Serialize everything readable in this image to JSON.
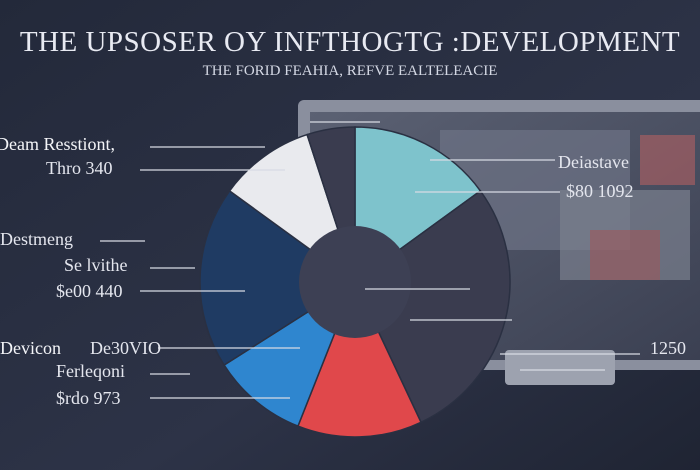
{
  "header": {
    "title": "THE UPSOSER OY INFTHOGTG :DEVELOPMENT",
    "subtitle": "THE FORID FEAHIA, REFVE EALTELEACIE"
  },
  "labels_left": [
    {
      "text": "Deam Resstiont,"
    },
    {
      "text": "Thro 340"
    },
    {
      "text": "Destmeng"
    },
    {
      "text": "Se lvithe"
    },
    {
      "text": "$e00 440"
    },
    {
      "text": "Devicon"
    },
    {
      "text": "De30VIO"
    },
    {
      "text": "Ferleqoni"
    },
    {
      "text": "$rdo 973"
    }
  ],
  "labels_right": [
    {
      "text": "Deiastave"
    },
    {
      "text": "$80 1092"
    },
    {
      "text": "1250"
    }
  ],
  "colors": {
    "background": "#2a3042",
    "cyan": "#7ec3cc",
    "white": "#e9eaee",
    "red": "#e0484b",
    "blue": "#2f86cf",
    "navy": "#1f3b63",
    "dark": "#3a3c4f",
    "monitor": "#8a8f9e"
  },
  "chart_data": {
    "type": "pie",
    "title": "THE UPSOSER OY INFTHOGTG :DEVELOPMENT",
    "subtitle": "THE FORID FEAHIA, REFVE EALTELEACIE",
    "slices": [
      {
        "color": "#7ec3cc",
        "value": 15
      },
      {
        "color": "#3a3c4f",
        "value": 28
      },
      {
        "color": "#e0484b",
        "value": 13
      },
      {
        "color": "#2f86cf",
        "value": 10
      },
      {
        "color": "#1f3b63",
        "value": 19
      },
      {
        "color": "#e9eaee",
        "value": 10
      },
      {
        "color": "#3a3c4f",
        "value": 5
      }
    ],
    "donut": true
  }
}
